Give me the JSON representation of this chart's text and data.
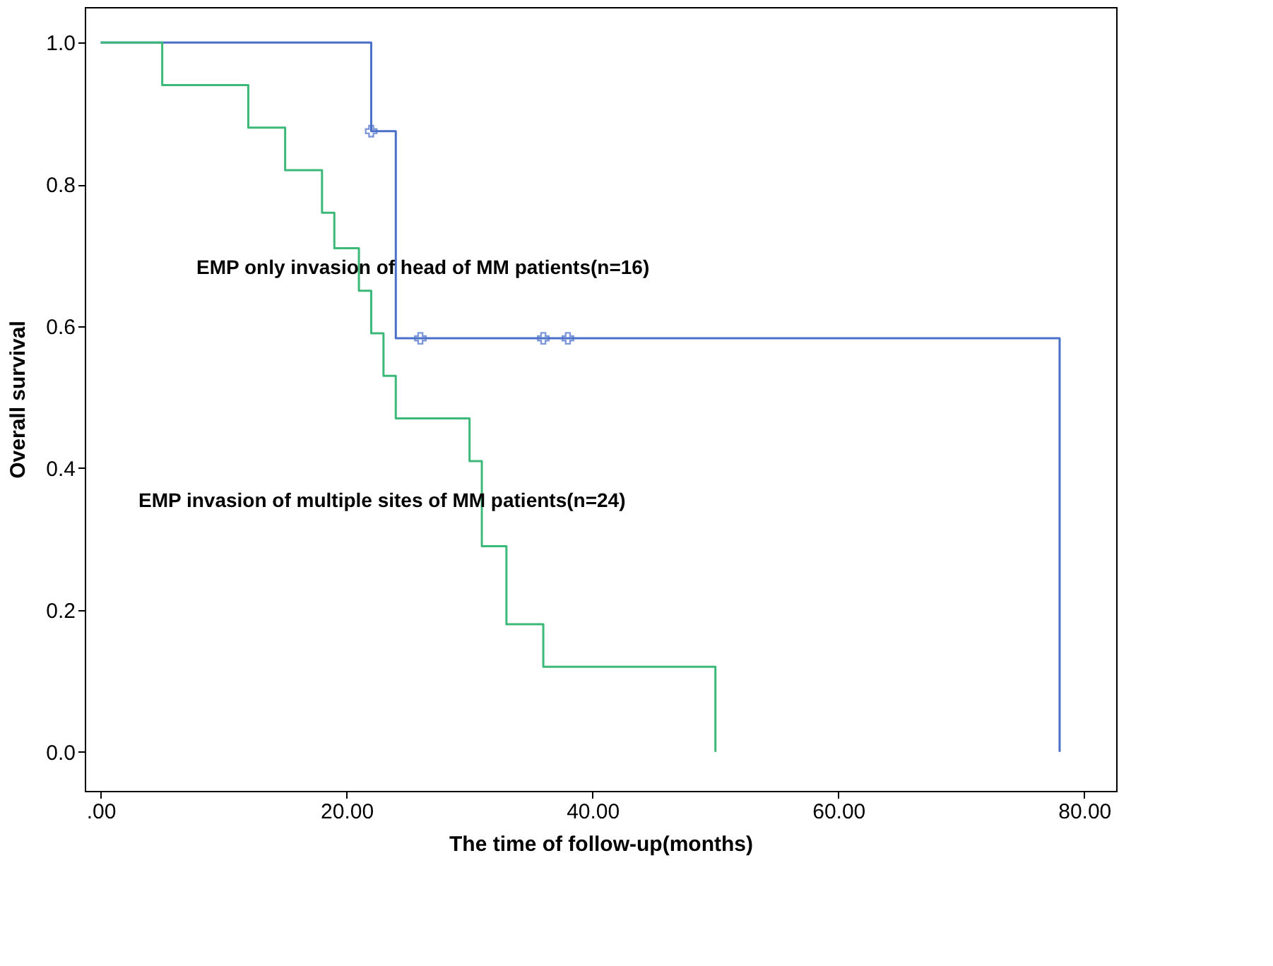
{
  "chart_data": {
    "type": "step",
    "xlabel": "The time of follow-up(months)",
    "ylabel": "Overall survival",
    "xlim": [
      -1.3,
      82.6
    ],
    "ylim": [
      -0.055,
      1.05
    ],
    "xticks": [
      {
        "value": 0,
        "label": ".00"
      },
      {
        "value": 20,
        "label": "20.00"
      },
      {
        "value": 40,
        "label": "40.00"
      },
      {
        "value": 60,
        "label": "60.00"
      },
      {
        "value": 80,
        "label": "80.00"
      }
    ],
    "yticks": [
      {
        "value": 0,
        "label": "0.0"
      },
      {
        "value": 0.2,
        "label": "0.2"
      },
      {
        "value": 0.4,
        "label": "0.4"
      },
      {
        "value": 0.6,
        "label": "0.6"
      },
      {
        "value": 0.8,
        "label": "0.8"
      },
      {
        "value": 1,
        "label": "1.0"
      }
    ],
    "grid": false,
    "line_style": "solid",
    "series": [
      {
        "color": "#4a6fc8",
        "x": [
          0,
          22,
          24,
          78
        ],
        "values": [
          1,
          0.875,
          0.583,
          0
        ]
      },
      {
        "color": "#3cb878",
        "x": [
          0,
          5,
          12,
          15,
          18,
          19,
          21,
          22,
          23,
          24,
          30,
          31,
          33,
          36,
          50
        ],
        "values": [
          1,
          0.94,
          0.88,
          0.82,
          0.76,
          0.71,
          0.65,
          0.59,
          0.53,
          0.47,
          0.41,
          0.29,
          0.18,
          0.12,
          0
        ]
      },
      {
        "type": "scatter",
        "marker": "cross",
        "color": "#4a6fc8",
        "x": [
          22,
          26,
          36,
          38
        ],
        "values": [
          0.875,
          0.583,
          0.583,
          0.583
        ]
      }
    ],
    "annotations": [
      "EMP only invasion of head of MM patients(n=16)",
      "EMP invasion of  multiple sites of MM patients(n=24)"
    ]
  }
}
